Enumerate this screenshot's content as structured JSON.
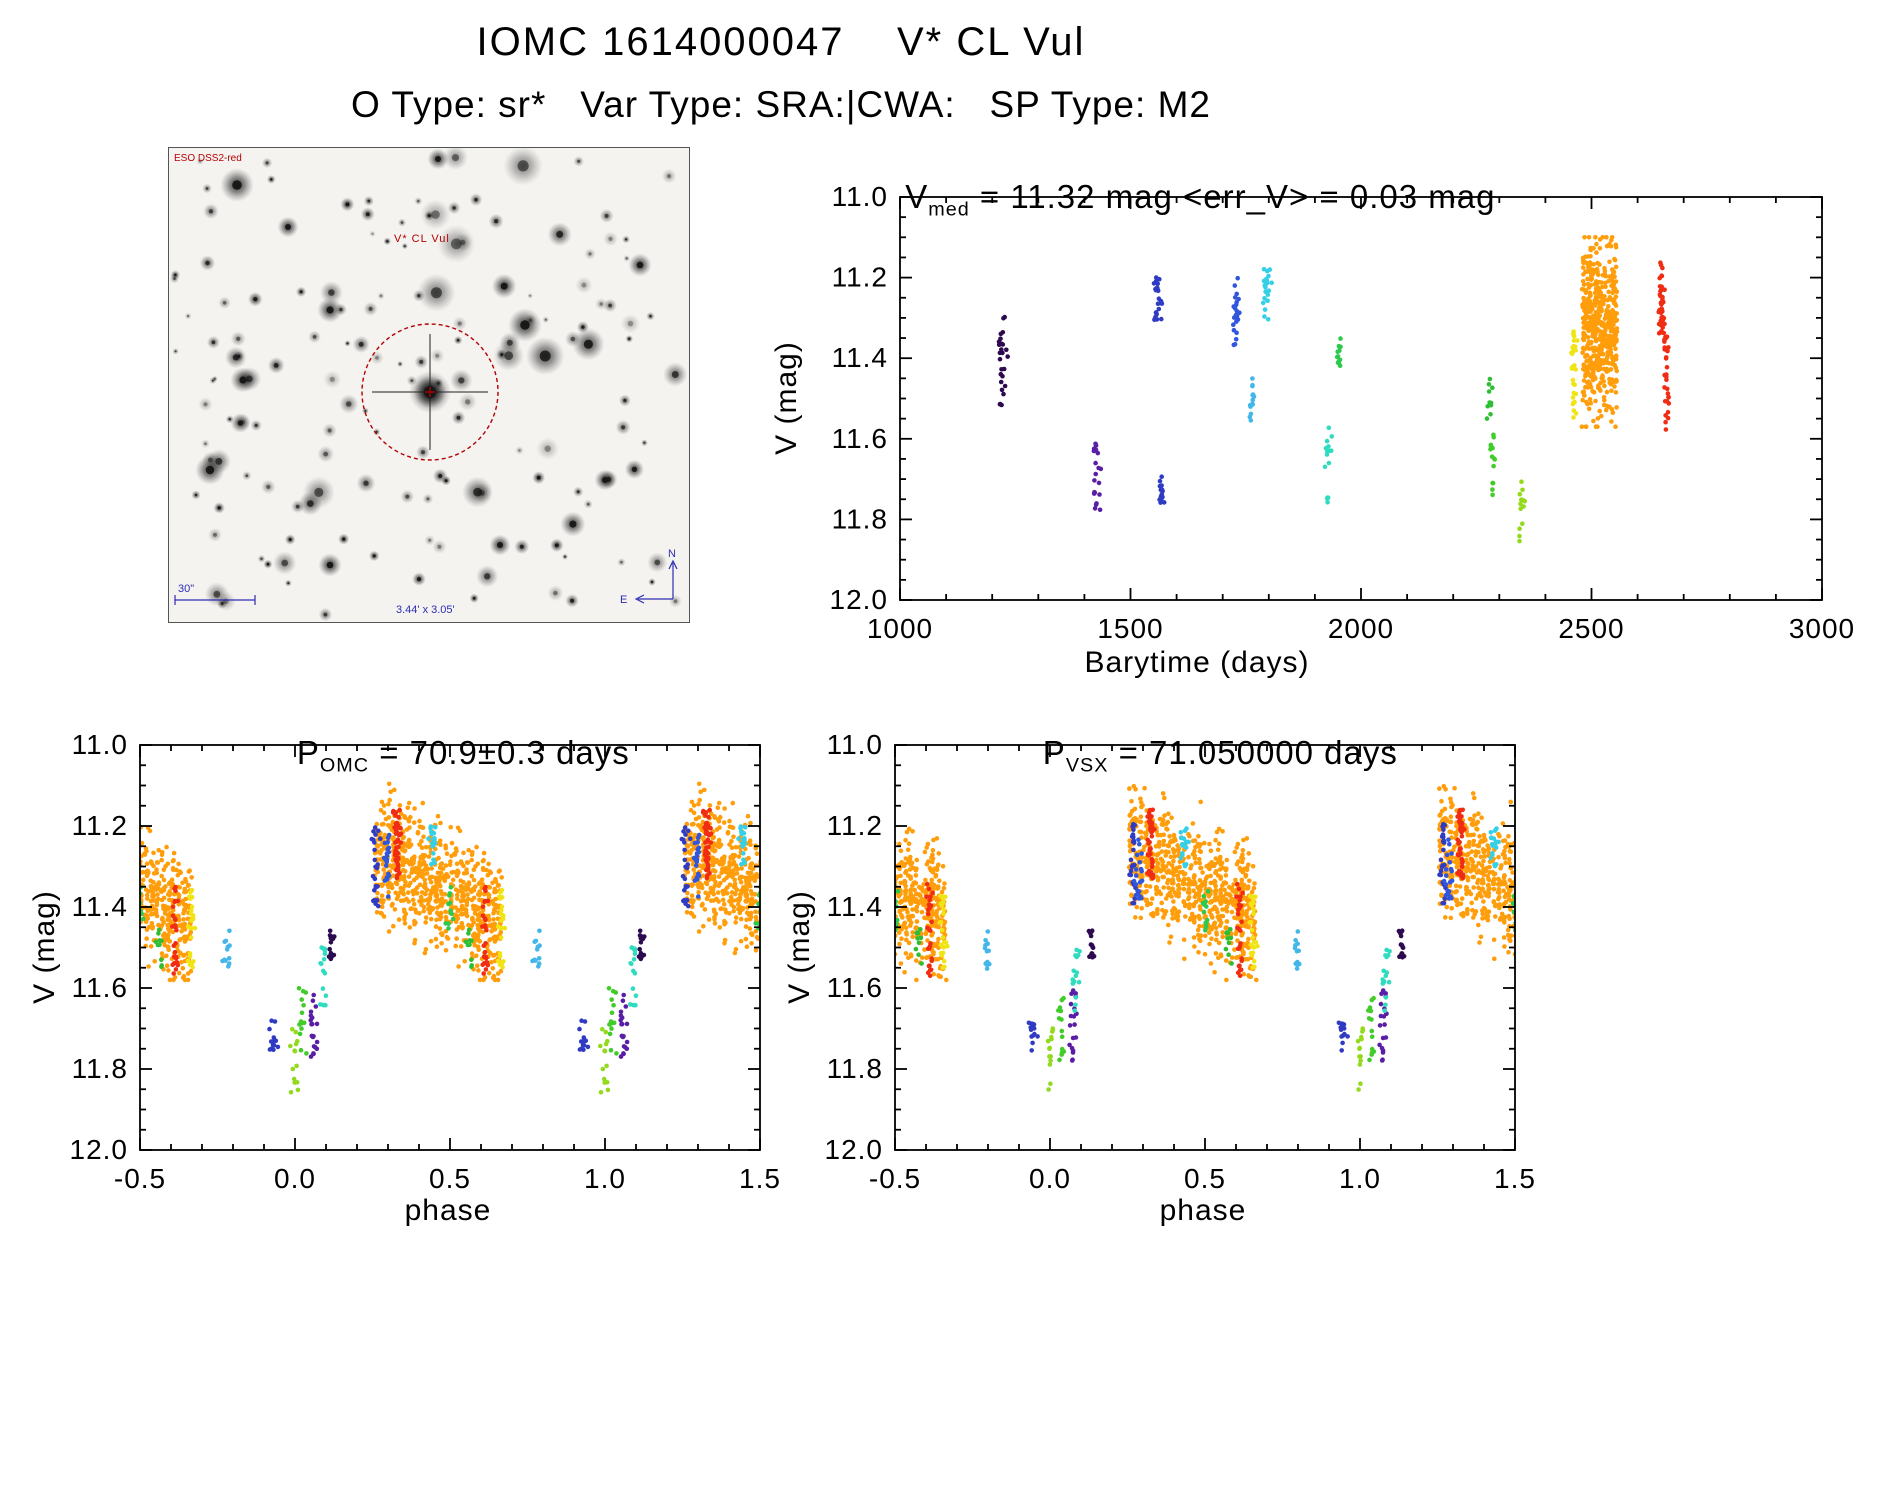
{
  "page": {
    "title": "IOMC 1614000047    V* CL Vul",
    "subtitle": "O Type: sr*   Var Type: SRA:|CWA:   SP Type: M2"
  },
  "starfield": {
    "survey_label": "ESO DSS2-red",
    "target_label": "V* CL Vul",
    "scale_label": "30\"",
    "fov_label": "3.44' x 3.05'",
    "north_label": "N",
    "east_label": "E",
    "annotation_color": "#b40000",
    "measure_color": "#2d2db4"
  },
  "chart_data": [
    {
      "id": "barytime",
      "type": "scatter",
      "title": {
        "prefix": "V",
        "sub": "med",
        "rest": " = 11.32 mag <err_V> = 0.03 mag"
      },
      "xlabel": "Barytime (days)",
      "ylabel": "V (mag)",
      "xlim": [
        1000,
        3000
      ],
      "ylim": [
        11.0,
        12.0
      ],
      "y_axis_note": "magnitude axis: brighter (11.0) at top, 12.0 at bottom",
      "grid": false,
      "xticks": {
        "values": [
          1000,
          1500,
          2000,
          2500,
          3000
        ],
        "labels": [
          "1000",
          "1500",
          "2000",
          "2500",
          "3000"
        ],
        "minor_step": 100
      },
      "yticks": {
        "values": [
          11.0,
          11.2,
          11.4,
          11.6,
          11.8,
          12.0
        ],
        "labels": [
          "11.0",
          "11.2",
          "11.4",
          "11.6",
          "11.8",
          "12.0"
        ],
        "minor_step": 0.05
      },
      "clusters": [
        {
          "name": "epoch-01",
          "color": "#2d0a50",
          "t": 1222,
          "t_spread": 4,
          "v_lo": 11.29,
          "v_hi": 11.52,
          "n": 26
        },
        {
          "name": "epoch-02",
          "color": "#5a1ea6",
          "t": 1428,
          "t_spread": 5,
          "v_lo": 11.6,
          "v_hi": 11.78,
          "n": 20
        },
        {
          "name": "epoch-03",
          "color": "#2f3bc3",
          "t": 1558,
          "t_spread": 5,
          "v_lo": 11.19,
          "v_hi": 11.31,
          "n": 24
        },
        {
          "name": "epoch-04",
          "color": "#2f3bc3",
          "t": 1568,
          "t_spread": 3,
          "v_lo": 11.68,
          "v_hi": 11.76,
          "n": 14
        },
        {
          "name": "epoch-05",
          "color": "#3056dd",
          "t": 1730,
          "t_spread": 4,
          "v_lo": 11.2,
          "v_hi": 11.38,
          "n": 24
        },
        {
          "name": "epoch-06",
          "color": "#43b6ea",
          "t": 1762,
          "t_spread": 3,
          "v_lo": 11.45,
          "v_hi": 11.56,
          "n": 14
        },
        {
          "name": "epoch-07",
          "color": "#35d0e8",
          "t": 1795,
          "t_spread": 4,
          "v_lo": 11.17,
          "v_hi": 11.31,
          "n": 22
        },
        {
          "name": "epoch-08",
          "color": "#2fdcc0",
          "t": 1930,
          "t_spread": 4,
          "v_lo": 11.54,
          "v_hi": 11.76,
          "n": 16
        },
        {
          "name": "epoch-09",
          "color": "#2dc94e",
          "t": 1952,
          "t_spread": 3,
          "v_lo": 11.35,
          "v_hi": 11.46,
          "n": 12
        },
        {
          "name": "epoch-10",
          "color": "#2fbe33",
          "t": 2280,
          "t_spread": 3,
          "v_lo": 11.45,
          "v_hi": 11.55,
          "n": 10
        },
        {
          "name": "epoch-11",
          "color": "#41cc2a",
          "t": 2286,
          "t_spread": 3,
          "v_lo": 11.59,
          "v_hi": 11.76,
          "n": 14
        },
        {
          "name": "epoch-12",
          "color": "#93da1d",
          "t": 2350,
          "t_spread": 3,
          "v_lo": 11.69,
          "v_hi": 11.86,
          "n": 14
        },
        {
          "name": "epoch-13",
          "color": "#f0e414",
          "t": 2462,
          "t_spread": 3,
          "v_lo": 11.33,
          "v_hi": 11.56,
          "n": 30
        },
        {
          "name": "epoch-14-dense",
          "color": "#ff9d0a",
          "band_t": true,
          "t_lo": 2483,
          "t_hi": 2553,
          "v_lo": 11.1,
          "v_hi": 11.57,
          "v_center": 11.33,
          "v_sigma": 0.1,
          "n": 520
        },
        {
          "name": "epoch-15",
          "color": "#f02c12",
          "t": 2652,
          "t_spread": 3,
          "v_lo": 11.16,
          "v_hi": 11.34,
          "n": 50
        },
        {
          "name": "epoch-16",
          "color": "#f02c12",
          "t": 2662,
          "t_spread": 3,
          "v_lo": 11.34,
          "v_hi": 11.58,
          "n": 30
        }
      ]
    },
    {
      "id": "phase_omc",
      "type": "scatter",
      "title": {
        "prefix": "P",
        "sub": "OMC",
        "rest": " = 70.9±0.3 days"
      },
      "xlabel": "phase",
      "ylabel": "V (mag)",
      "xlim": [
        -0.5,
        1.5
      ],
      "ylim": [
        11.0,
        12.0
      ],
      "y_axis_note": "magnitude axis: brighter (11.0) at top, 12.0 at bottom",
      "grid": false,
      "wrap_note": "each epoch plotted at phase-1, phase, phase+1 within xlim",
      "xticks": {
        "values": [
          -0.5,
          0.0,
          0.5,
          1.0,
          1.5
        ],
        "labels": [
          "-0.5",
          "0.0",
          "0.5",
          "1.0",
          "1.5"
        ],
        "minor_step": 0.1
      },
      "yticks": {
        "values": [
          11.0,
          11.2,
          11.4,
          11.6,
          11.8,
          12.0
        ],
        "labels": [
          "11.0",
          "11.2",
          "11.4",
          "11.6",
          "11.8",
          "12.0"
        ],
        "minor_step": 0.05
      },
      "clusters": [
        {
          "name": "epoch-01",
          "color": "#2d0a50",
          "phase": 0.12,
          "v_lo": 11.45,
          "v_hi": 11.53,
          "n": 16
        },
        {
          "name": "epoch-02",
          "color": "#5a1ea6",
          "phase": 0.06,
          "v_lo": 11.6,
          "v_hi": 11.78,
          "n": 20
        },
        {
          "name": "epoch-03",
          "color": "#2f3bc3",
          "phase": 0.26,
          "v_lo": 11.19,
          "v_hi": 11.4,
          "n": 24
        },
        {
          "name": "epoch-04",
          "color": "#2f3bc3",
          "phase": 0.93,
          "v_lo": 11.68,
          "v_hi": 11.76,
          "n": 14
        },
        {
          "name": "epoch-05",
          "color": "#3056dd",
          "phase": 0.295,
          "v_lo": 11.2,
          "v_hi": 11.38,
          "n": 20
        },
        {
          "name": "epoch-06",
          "color": "#43b6ea",
          "phase": 0.78,
          "v_lo": 11.45,
          "v_hi": 11.56,
          "n": 12
        },
        {
          "name": "epoch-07",
          "color": "#35d0e8",
          "phase": 0.445,
          "v_lo": 11.2,
          "v_hi": 11.3,
          "n": 18
        },
        {
          "name": "epoch-08",
          "color": "#2fdcc0",
          "phase": 0.095,
          "v_lo": 11.5,
          "v_hi": 11.66,
          "n": 16
        },
        {
          "name": "epoch-09",
          "color": "#2dc94e",
          "phase": 0.5,
          "v_lo": 11.35,
          "v_hi": 11.46,
          "n": 12
        },
        {
          "name": "epoch-10",
          "color": "#2fbe33",
          "phase": 0.565,
          "v_lo": 11.45,
          "v_hi": 11.55,
          "n": 10
        },
        {
          "name": "epoch-11",
          "color": "#41cc2a",
          "phase": 0.025,
          "v_lo": 11.59,
          "v_hi": 11.78,
          "n": 14
        },
        {
          "name": "epoch-12",
          "color": "#93da1d",
          "phase": 0.998,
          "v_lo": 11.69,
          "v_hi": 11.86,
          "n": 14
        },
        {
          "name": "epoch-13",
          "color": "#f0e414",
          "phase": 0.665,
          "v_lo": 11.35,
          "v_hi": 11.55,
          "n": 26
        },
        {
          "name": "epoch-14-dense",
          "color": "#ff9d0a",
          "band_p": true,
          "p_lo": 0.265,
          "p_hi": 0.66,
          "v_start": 11.26,
          "v_end": 11.43,
          "v_sigma": 0.075,
          "n": 730
        },
        {
          "name": "epoch-15",
          "color": "#f02c12",
          "phase": 0.33,
          "v_lo": 11.16,
          "v_hi": 11.33,
          "n": 45
        },
        {
          "name": "epoch-16",
          "color": "#f02c12",
          "phase": 0.615,
          "v_lo": 11.34,
          "v_hi": 11.58,
          "n": 28
        }
      ]
    },
    {
      "id": "phase_vsx",
      "type": "scatter",
      "title": {
        "prefix": "P",
        "sub": "VSX",
        "rest": " = 71.050000 days"
      },
      "xlabel": "phase",
      "ylabel": "V (mag)",
      "xlim": [
        -0.5,
        1.5
      ],
      "ylim": [
        11.0,
        12.0
      ],
      "y_axis_note": "magnitude axis: brighter (11.0) at top, 12.0 at bottom",
      "grid": false,
      "wrap_note": "each epoch plotted at phase-1, phase, phase+1 within xlim",
      "xticks": {
        "values": [
          -0.5,
          0.0,
          0.5,
          1.0,
          1.5
        ],
        "labels": [
          "-0.5",
          "0.0",
          "0.5",
          "1.0",
          "1.5"
        ],
        "minor_step": 0.1
      },
      "yticks": {
        "values": [
          11.0,
          11.2,
          11.4,
          11.6,
          11.8,
          12.0
        ],
        "labels": [
          "11.0",
          "11.2",
          "11.4",
          "11.6",
          "11.8",
          "12.0"
        ],
        "minor_step": 0.05
      },
      "clusters": [
        {
          "name": "epoch-01",
          "color": "#2d0a50",
          "phase": 0.135,
          "v_lo": 11.45,
          "v_hi": 11.53,
          "n": 16
        },
        {
          "name": "epoch-02",
          "color": "#5a1ea6",
          "phase": 0.075,
          "v_lo": 11.6,
          "v_hi": 11.78,
          "n": 20
        },
        {
          "name": "epoch-03",
          "color": "#2f3bc3",
          "phase": 0.27,
          "v_lo": 11.19,
          "v_hi": 11.4,
          "n": 24
        },
        {
          "name": "epoch-04",
          "color": "#2f3bc3",
          "phase": 0.945,
          "v_lo": 11.68,
          "v_hi": 11.76,
          "n": 14
        },
        {
          "name": "epoch-05",
          "color": "#3056dd",
          "phase": 0.285,
          "v_lo": 11.2,
          "v_hi": 11.38,
          "n": 20
        },
        {
          "name": "epoch-06",
          "color": "#43b6ea",
          "phase": 0.795,
          "v_lo": 11.45,
          "v_hi": 11.56,
          "n": 12
        },
        {
          "name": "epoch-07",
          "color": "#35d0e8",
          "phase": 0.435,
          "v_lo": 11.2,
          "v_hi": 11.3,
          "n": 18
        },
        {
          "name": "epoch-08",
          "color": "#2fdcc0",
          "phase": 0.085,
          "v_lo": 11.5,
          "v_hi": 11.66,
          "n": 16
        },
        {
          "name": "epoch-09",
          "color": "#2dc94e",
          "phase": 0.505,
          "v_lo": 11.35,
          "v_hi": 11.46,
          "n": 12
        },
        {
          "name": "epoch-10",
          "color": "#2fbe33",
          "phase": 0.575,
          "v_lo": 11.45,
          "v_hi": 11.55,
          "n": 10
        },
        {
          "name": "epoch-11",
          "color": "#41cc2a",
          "phase": 0.035,
          "v_lo": 11.59,
          "v_hi": 11.78,
          "n": 14
        },
        {
          "name": "epoch-12",
          "color": "#93da1d",
          "phase": 0.005,
          "v_lo": 11.69,
          "v_hi": 11.86,
          "n": 14
        },
        {
          "name": "epoch-13",
          "color": "#f0e414",
          "phase": 0.655,
          "v_lo": 11.35,
          "v_hi": 11.55,
          "n": 26
        },
        {
          "name": "epoch-14-dense",
          "color": "#ff9d0a",
          "band_p": true,
          "p_lo": 0.26,
          "p_hi": 0.655,
          "v_start": 11.26,
          "v_end": 11.43,
          "v_sigma": 0.075,
          "n": 730
        },
        {
          "name": "epoch-15",
          "color": "#f02c12",
          "phase": 0.325,
          "v_lo": 11.16,
          "v_hi": 11.33,
          "n": 45
        },
        {
          "name": "epoch-16",
          "color": "#f02c12",
          "phase": 0.61,
          "v_lo": 11.34,
          "v_hi": 11.58,
          "n": 28
        }
      ]
    }
  ]
}
